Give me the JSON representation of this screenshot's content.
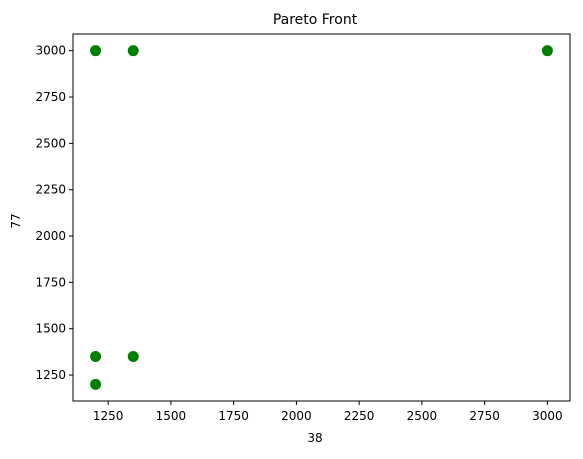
{
  "chart_data": {
    "type": "scatter",
    "title": "Pareto Front",
    "xlabel": "38",
    "ylabel": "77",
    "xlim": [
      1110,
      3090
    ],
    "ylim": [
      1110,
      3090
    ],
    "xticks": [
      1250,
      1500,
      1750,
      2000,
      2250,
      2500,
      2750,
      3000
    ],
    "yticks": [
      1250,
      1500,
      1750,
      2000,
      2250,
      2500,
      2750,
      3000
    ],
    "grid": false,
    "legend": false,
    "marker_color": "#008000",
    "series": [
      {
        "points": [
          {
            "x": 1200,
            "y": 3000
          },
          {
            "x": 1350,
            "y": 3000
          },
          {
            "x": 3000,
            "y": 3000
          },
          {
            "x": 1200,
            "y": 1350
          },
          {
            "x": 1350,
            "y": 1350
          },
          {
            "x": 1200,
            "y": 1200
          }
        ]
      }
    ]
  }
}
